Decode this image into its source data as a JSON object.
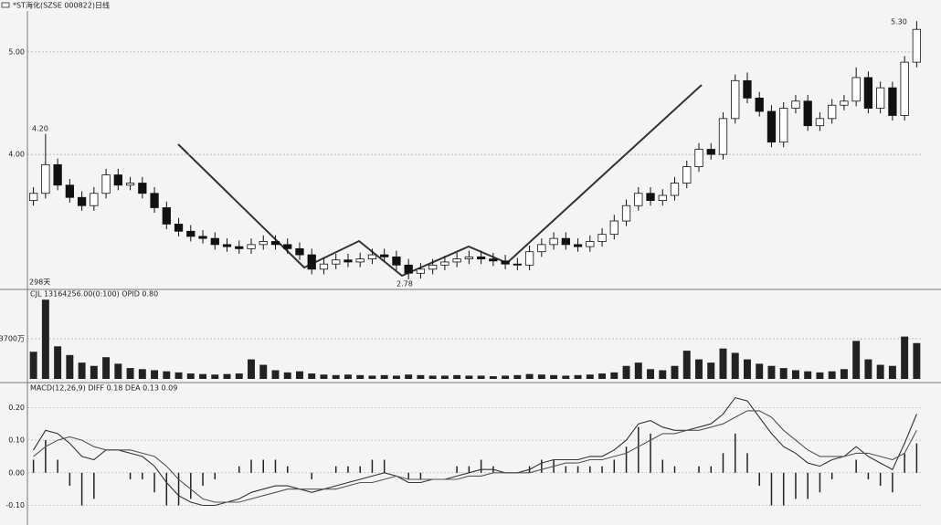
{
  "chart_data": [
    {
      "type": "candlestick",
      "title": "*ST海化(SZSE 000822)日线",
      "annotations": [
        "4.20",
        "2.78",
        "5.30",
        "298天"
      ],
      "open": [
        3.55,
        3.62,
        3.9,
        3.7,
        3.58,
        3.5,
        3.62,
        3.8,
        3.7,
        3.72,
        3.62,
        3.48,
        3.32,
        3.25,
        3.2,
        3.18,
        3.12,
        3.1,
        3.08,
        3.12,
        3.15,
        3.12,
        3.08,
        3.02,
        2.88,
        2.93,
        2.97,
        2.95,
        2.98,
        3.02,
        3.0,
        2.92,
        2.84,
        2.88,
        2.92,
        2.95,
        2.98,
        3.0,
        2.98,
        2.96,
        2.93,
        2.92,
        3.05,
        3.12,
        3.18,
        3.12,
        3.1,
        3.15,
        3.22,
        3.35,
        3.5,
        3.62,
        3.55,
        3.6,
        3.72,
        3.88,
        4.05,
        4.0,
        4.35,
        4.72,
        4.55,
        4.42,
        4.12,
        4.45,
        4.52,
        4.28,
        4.35,
        4.48,
        4.52,
        4.75,
        4.45,
        4.65,
        4.38,
        4.9
      ],
      "high": [
        3.68,
        4.2,
        3.96,
        3.76,
        3.64,
        3.68,
        3.86,
        3.86,
        3.78,
        3.78,
        3.68,
        3.54,
        3.38,
        3.31,
        3.26,
        3.24,
        3.18,
        3.16,
        3.18,
        3.21,
        3.21,
        3.18,
        3.14,
        3.08,
        2.99,
        3.03,
        3.03,
        3.04,
        3.08,
        3.08,
        3.06,
        2.98,
        2.94,
        2.98,
        3.01,
        3.04,
        3.06,
        3.06,
        3.04,
        3.02,
        2.99,
        3.11,
        3.18,
        3.24,
        3.24,
        3.18,
        3.21,
        3.28,
        3.41,
        3.56,
        3.68,
        3.68,
        3.66,
        3.78,
        3.94,
        4.11,
        4.11,
        4.41,
        4.78,
        4.8,
        4.61,
        4.48,
        4.51,
        4.58,
        4.58,
        4.41,
        4.54,
        4.58,
        4.85,
        4.81,
        4.71,
        4.71,
        4.96,
        5.3
      ],
      "low": [
        3.5,
        3.57,
        3.65,
        3.53,
        3.45,
        3.45,
        3.57,
        3.65,
        3.65,
        3.57,
        3.43,
        3.27,
        3.2,
        3.15,
        3.13,
        3.07,
        3.05,
        3.03,
        3.03,
        3.07,
        3.07,
        3.03,
        2.97,
        2.83,
        2.83,
        2.88,
        2.9,
        2.9,
        2.93,
        2.95,
        2.87,
        2.78,
        2.79,
        2.83,
        2.87,
        2.9,
        2.93,
        2.93,
        2.91,
        2.88,
        2.87,
        2.87,
        3.0,
        3.07,
        3.07,
        3.05,
        3.05,
        3.1,
        3.17,
        3.3,
        3.45,
        3.5,
        3.5,
        3.55,
        3.67,
        3.83,
        3.95,
        3.95,
        4.3,
        4.5,
        4.37,
        4.07,
        4.07,
        4.4,
        4.23,
        4.23,
        4.3,
        4.43,
        4.47,
        4.4,
        4.4,
        4.33,
        4.33,
        4.85
      ],
      "close": [
        3.62,
        3.9,
        3.7,
        3.58,
        3.5,
        3.62,
        3.8,
        3.7,
        3.72,
        3.62,
        3.48,
        3.32,
        3.25,
        3.2,
        3.18,
        3.12,
        3.1,
        3.08,
        3.12,
        3.15,
        3.12,
        3.08,
        3.02,
        2.88,
        2.93,
        2.97,
        2.95,
        2.98,
        3.02,
        3.0,
        2.92,
        2.84,
        2.88,
        2.92,
        2.95,
        2.98,
        3.0,
        2.98,
        2.96,
        2.93,
        2.92,
        3.05,
        3.12,
        3.18,
        3.12,
        3.1,
        3.15,
        3.22,
        3.35,
        3.5,
        3.62,
        3.55,
        3.6,
        3.72,
        3.88,
        4.05,
        4.0,
        4.35,
        4.72,
        4.55,
        4.42,
        4.12,
        4.45,
        4.52,
        4.28,
        4.35,
        4.48,
        4.52,
        4.75,
        4.45,
        4.65,
        4.38,
        4.9,
        5.22
      ],
      "up_color": "#ffffff",
      "down_color": "#111111",
      "ylim": [
        2.7,
        5.4
      ],
      "yticks": [
        {
          "value": 4,
          "label": "4.00"
        },
        {
          "value": 5,
          "label": "5.00"
        }
      ],
      "grid": true
    },
    {
      "type": "bar",
      "title": "CJL  13164256.00(0:100)   OPID  0.80",
      "values": [
        2500,
        7300,
        3000,
        2200,
        1500,
        1200,
        2000,
        1400,
        1000,
        900,
        800,
        700,
        600,
        500,
        450,
        400,
        450,
        500,
        1800,
        1300,
        800,
        600,
        700,
        500,
        400,
        350,
        400,
        350,
        300,
        350,
        300,
        400,
        350,
        300,
        300,
        350,
        300,
        300,
        250,
        300,
        350,
        450,
        400,
        350,
        300,
        350,
        400,
        500,
        600,
        1200,
        1500,
        900,
        800,
        1200,
        2600,
        1800,
        1500,
        2800,
        2400,
        1800,
        1400,
        1200,
        1000,
        800,
        700,
        600,
        700,
        900,
        3500,
        1800,
        1300,
        1200,
        3900,
        3300
      ],
      "color": "#222222",
      "ylim": [
        0,
        7400
      ],
      "yticks": [
        {
          "value": 3700,
          "label": "3700万"
        }
      ],
      "grid": true
    },
    {
      "type": "macd",
      "title": "MACD(12,26,9)  DIFF  0.18   DEA  0.13    0.09",
      "series": [
        {
          "color": "#333333",
          "values": [
            0.07,
            0.13,
            0.12,
            0.09,
            0.05,
            0.04,
            0.07,
            0.07,
            0.06,
            0.05,
            0.02,
            -0.03,
            -0.07,
            -0.09,
            -0.1,
            -0.1,
            -0.09,
            -0.08,
            -0.06,
            -0.05,
            -0.04,
            -0.04,
            -0.05,
            -0.06,
            -0.05,
            -0.04,
            -0.03,
            -0.02,
            -0.01,
            0.0,
            -0.01,
            -0.03,
            -0.03,
            -0.02,
            -0.02,
            -0.01,
            0.0,
            0.01,
            0.01,
            0.0,
            0.0,
            0.01,
            0.03,
            0.04,
            0.04,
            0.04,
            0.05,
            0.05,
            0.07,
            0.1,
            0.15,
            0.16,
            0.14,
            0.13,
            0.13,
            0.14,
            0.15,
            0.18,
            0.23,
            0.22,
            0.17,
            0.12,
            0.08,
            0.06,
            0.03,
            0.02,
            0.04,
            0.05,
            0.08,
            0.05,
            0.03,
            0.01,
            0.09,
            0.18
          ]
        },
        {
          "color": "#555555",
          "values": [
            0.05,
            0.08,
            0.1,
            0.11,
            0.1,
            0.08,
            0.07,
            0.07,
            0.07,
            0.06,
            0.05,
            0.02,
            -0.02,
            -0.05,
            -0.08,
            -0.09,
            -0.09,
            -0.09,
            -0.08,
            -0.07,
            -0.06,
            -0.05,
            -0.05,
            -0.05,
            -0.05,
            -0.05,
            -0.04,
            -0.03,
            -0.03,
            -0.02,
            -0.01,
            -0.02,
            -0.02,
            -0.02,
            -0.02,
            -0.02,
            -0.01,
            -0.01,
            0.0,
            0.0,
            0.0,
            0.0,
            0.01,
            0.02,
            0.03,
            0.03,
            0.04,
            0.04,
            0.05,
            0.06,
            0.08,
            0.1,
            0.12,
            0.12,
            0.13,
            0.13,
            0.14,
            0.15,
            0.17,
            0.19,
            0.19,
            0.17,
            0.13,
            0.1,
            0.07,
            0.05,
            0.05,
            0.05,
            0.06,
            0.06,
            0.05,
            0.04,
            0.06,
            0.13
          ]
        }
      ],
      "histogram": [
        0.04,
        0.1,
        0.04,
        -0.04,
        -0.1,
        -0.08,
        0,
        0,
        -0.02,
        -0.02,
        -0.06,
        -0.1,
        -0.1,
        -0.08,
        -0.04,
        -0.02,
        0,
        0.02,
        0.04,
        0.04,
        0.04,
        0.02,
        0,
        -0.02,
        0,
        0.02,
        0.02,
        0.02,
        0.04,
        0.04,
        0,
        -0.02,
        -0.02,
        0,
        0,
        0.02,
        0.02,
        0.04,
        0.02,
        0,
        0,
        0.02,
        0.04,
        0.04,
        0.02,
        0.02,
        0.02,
        0.02,
        0.04,
        0.08,
        0.14,
        0.12,
        0.04,
        0.02,
        0,
        0.02,
        0.02,
        0.06,
        0.12,
        0.06,
        -0.04,
        -0.1,
        -0.1,
        -0.08,
        -0.08,
        -0.06,
        -0.02,
        0,
        0.04,
        -0.02,
        -0.04,
        -0.06,
        0.06,
        0.09
      ],
      "histogram_color": "#222222",
      "ylim": [
        -0.16,
        0.24
      ],
      "yticks": [
        {
          "value": 0.2,
          "label": "0.20"
        },
        {
          "value": 0.1,
          "label": "0.10"
        },
        {
          "value": 0,
          "label": "0.00"
        },
        {
          "value": -0.1,
          "label": "-0.10"
        }
      ],
      "grid": true
    }
  ]
}
